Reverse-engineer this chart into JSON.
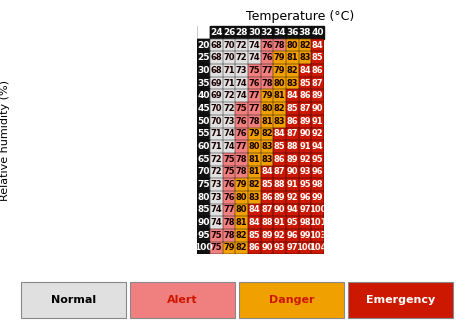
{
  "title": "Temperature (°C)",
  "ylabel": "Relative humidity (%)",
  "temp_cols": [
    24,
    26,
    28,
    30,
    32,
    34,
    36,
    38,
    40
  ],
  "humid_rows": [
    20,
    25,
    30,
    35,
    40,
    45,
    50,
    55,
    60,
    65,
    70,
    75,
    80,
    85,
    90,
    95,
    100
  ],
  "values": [
    [
      68,
      70,
      72,
      74,
      76,
      78,
      80,
      82,
      84
    ],
    [
      68,
      70,
      72,
      74,
      76,
      79,
      81,
      83,
      85
    ],
    [
      68,
      71,
      73,
      75,
      77,
      79,
      82,
      84,
      86
    ],
    [
      69,
      71,
      74,
      76,
      78,
      80,
      83,
      85,
      87
    ],
    [
      69,
      72,
      74,
      77,
      79,
      81,
      84,
      86,
      89
    ],
    [
      70,
      72,
      75,
      77,
      80,
      82,
      85,
      87,
      90
    ],
    [
      70,
      73,
      76,
      78,
      81,
      83,
      86,
      89,
      91
    ],
    [
      71,
      74,
      76,
      79,
      82,
      84,
      87,
      90,
      92
    ],
    [
      71,
      74,
      77,
      80,
      83,
      85,
      88,
      91,
      94
    ],
    [
      72,
      75,
      78,
      81,
      83,
      86,
      89,
      92,
      95
    ],
    [
      72,
      75,
      78,
      81,
      84,
      87,
      90,
      93,
      96
    ],
    [
      73,
      76,
      79,
      82,
      85,
      88,
      91,
      95,
      98
    ],
    [
      73,
      76,
      80,
      83,
      86,
      89,
      92,
      96,
      99
    ],
    [
      74,
      77,
      80,
      84,
      87,
      90,
      94,
      97,
      100
    ],
    [
      74,
      78,
      81,
      84,
      88,
      91,
      95,
      98,
      101
    ],
    [
      75,
      78,
      82,
      85,
      89,
      92,
      96,
      99,
      103
    ],
    [
      75,
      79,
      82,
      86,
      90,
      93,
      97,
      100,
      104
    ]
  ],
  "normal_color": "#e0e0e0",
  "alert_color": "#f08080",
  "danger_color": "#f0a000",
  "emergency_color": "#cc1800",
  "header_bg": "#111111",
  "legend_items": [
    {
      "label": "Normal",
      "bg": "#e0e0e0",
      "tc": "#000000"
    },
    {
      "label": "Alert",
      "bg": "#f08080",
      "tc": "#cc1800"
    },
    {
      "label": "Danger",
      "bg": "#f0a000",
      "tc": "#cc1800"
    },
    {
      "label": "Emergency",
      "bg": "#cc1800",
      "tc": "#ffffff"
    }
  ]
}
